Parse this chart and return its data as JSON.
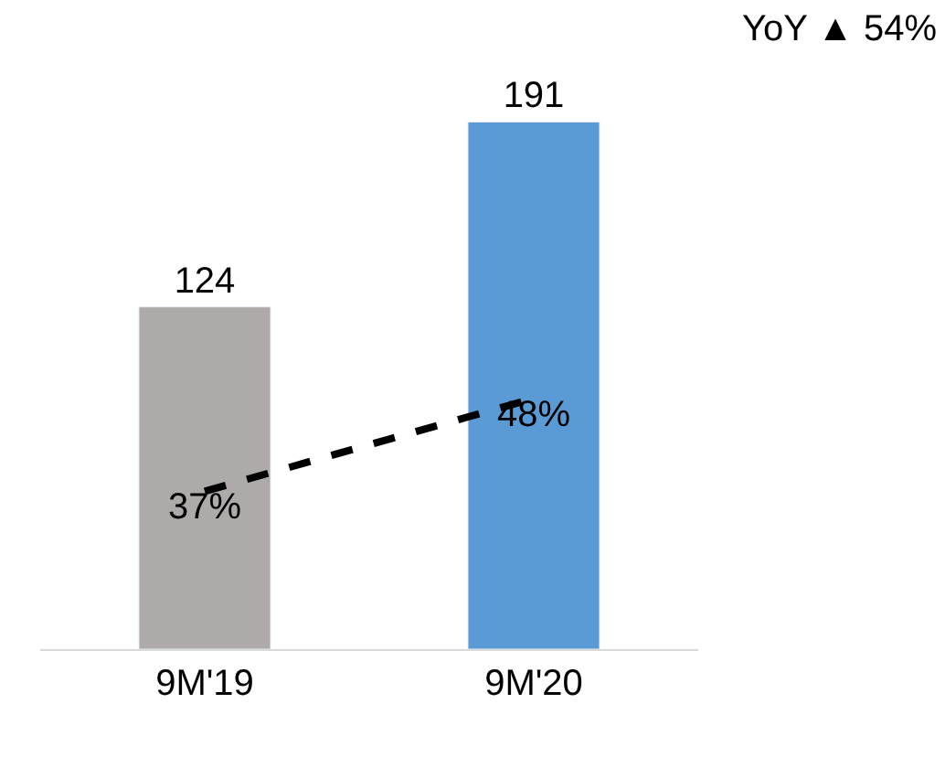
{
  "chart_data": {
    "type": "bar",
    "categories": [
      "9M'19",
      "9M'20"
    ],
    "series": [
      {
        "colors": [
          "#aeaaaa",
          "#5b9bd5"
        ],
        "values": [
          124,
          191
        ],
        "value_labels": [
          "124",
          "191"
        ]
      },
      {
        "type": "line",
        "axis": "y2",
        "color": "#000000",
        "line_style": "dashed",
        "values": [
          37,
          48
        ],
        "value_labels": [
          "37%",
          "48%"
        ]
      }
    ],
    "tick_labels": "x",
    "marker": "none",
    "annotations": [
      "YoY ▲ 54%"
    ]
  }
}
